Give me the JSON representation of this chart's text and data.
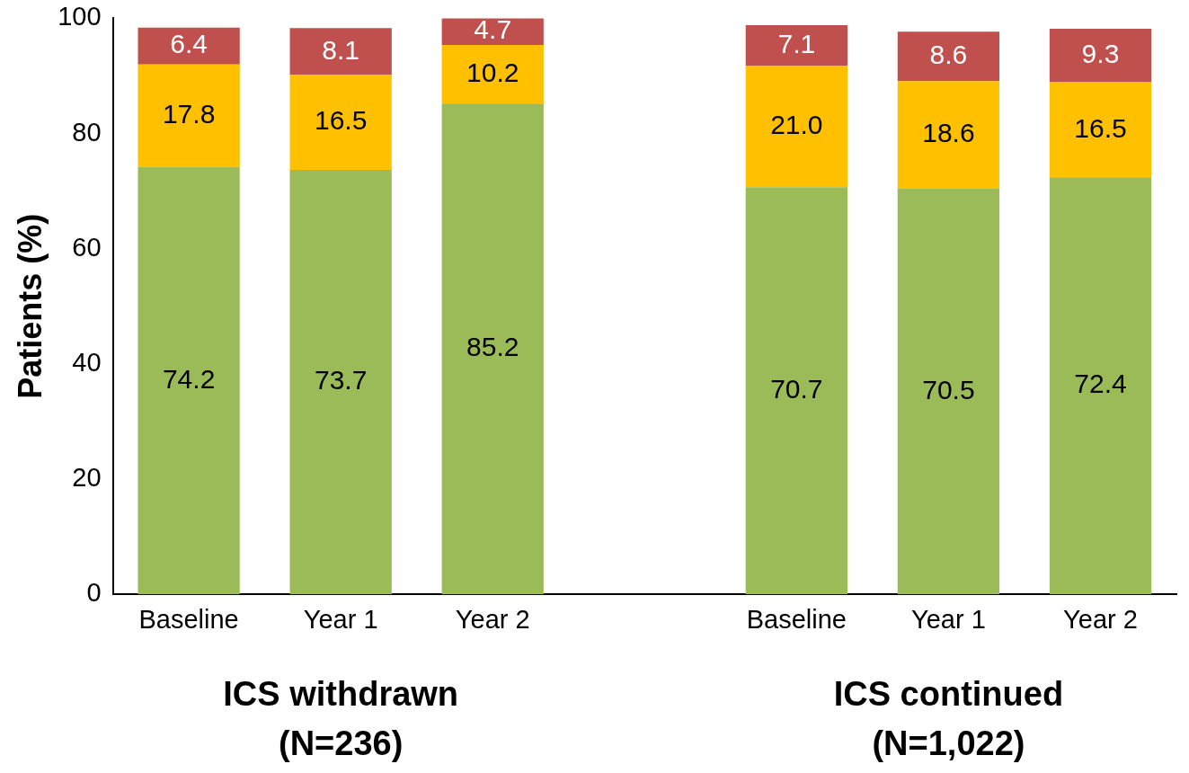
{
  "chart_data": {
    "type": "bar",
    "stacked": true,
    "ylabel": "Patients (%)",
    "categories": [
      "Baseline",
      "Year 1",
      "Year 2",
      null,
      "Baseline",
      "Year 1",
      "Year 2"
    ],
    "series": [
      {
        "color": "#9bbb59",
        "values": [
          74.2,
          73.7,
          85.2,
          null,
          70.7,
          70.5,
          72.4
        ],
        "value_labels": [
          "74.2",
          "73.7",
          "85.2",
          null,
          "70.7",
          "70.5",
          "72.4"
        ]
      },
      {
        "color": "#ffc000",
        "values": [
          17.8,
          16.5,
          10.2,
          null,
          21.0,
          18.6,
          16.5
        ],
        "value_labels": [
          "17.8",
          "16.5",
          "10.2",
          null,
          "21.0",
          "18.6",
          "16.5"
        ]
      },
      {
        "color": "#c0504d",
        "values": [
          6.4,
          8.1,
          4.7,
          null,
          7.1,
          8.6,
          9.3
        ],
        "value_labels": [
          "6.4",
          "8.1",
          "4.7",
          null,
          "7.1",
          "8.6",
          "9.3"
        ]
      }
    ],
    "ylim": [
      0,
      100
    ],
    "yticks": [
      0,
      20,
      40,
      60,
      80,
      100
    ],
    "grid": false,
    "legend": false,
    "annotations": [
      "ICS withdrawn\n(N=236)",
      "ICS continued\n(N=1,022)"
    ]
  }
}
